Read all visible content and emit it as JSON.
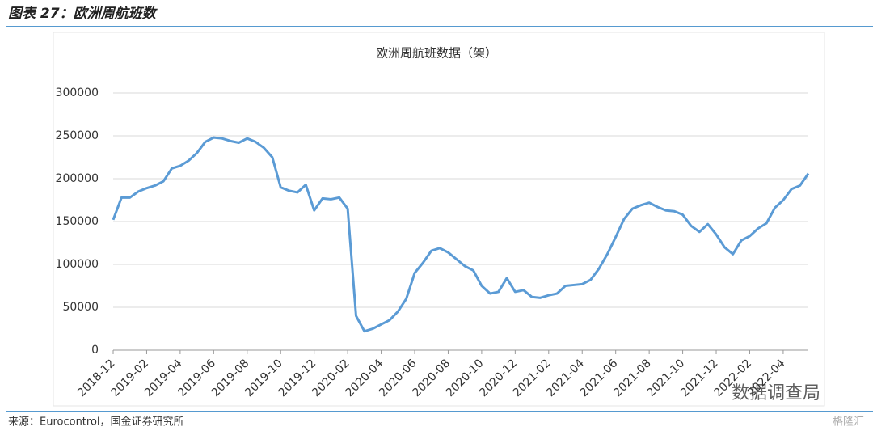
{
  "header": "图表 27：欧洲周航班数",
  "source": "来源：Eurocontrol，国金证券研究所",
  "watermark": "数据调查局",
  "watermark2": "格隆汇",
  "chart_data": {
    "type": "line",
    "title": "欧洲周航班数据（架）",
    "categories": [
      "2018-12",
      null,
      null,
      null,
      "2019-02",
      null,
      null,
      null,
      "2019-04",
      null,
      null,
      null,
      "2019-06",
      null,
      null,
      null,
      "2019-08",
      null,
      null,
      null,
      "2019-10",
      null,
      null,
      null,
      "2019-12",
      null,
      null,
      null,
      "2020-02",
      null,
      null,
      null,
      "2020-04",
      null,
      null,
      null,
      "2020-06",
      null,
      null,
      null,
      "2020-08",
      null,
      null,
      null,
      "2020-10",
      null,
      null,
      null,
      "2020-12",
      null,
      null,
      null,
      "2021-02",
      null,
      null,
      null,
      "2021-04",
      null,
      null,
      null,
      "2021-06",
      null,
      null,
      null,
      "2021-08",
      null,
      null,
      null,
      "2021-10",
      null,
      null,
      null,
      "2021-12",
      null,
      null,
      null,
      "2022-02",
      null,
      null,
      null,
      "2022-04",
      null,
      null,
      null
    ],
    "values": [
      152000,
      178000,
      178000,
      185000,
      189000,
      192000,
      197000,
      212000,
      215000,
      221000,
      230000,
      243000,
      248000,
      247000,
      244000,
      242000,
      247000,
      243000,
      236000,
      225000,
      190000,
      186000,
      184000,
      193000,
      163000,
      177000,
      176000,
      178000,
      165000,
      40000,
      22000,
      25000,
      30000,
      35000,
      45000,
      60000,
      90000,
      102000,
      116000,
      119000,
      114000,
      106000,
      98000,
      93000,
      75000,
      66000,
      68000,
      84000,
      68000,
      70000,
      62000,
      61000,
      64000,
      66000,
      75000,
      76000,
      77000,
      82000,
      95000,
      112000,
      132000,
      153000,
      165000,
      169000,
      172000,
      167000,
      163000,
      162000,
      158000,
      145000,
      138000,
      147000,
      135000,
      120000,
      112000,
      128000,
      133000,
      142000,
      148000,
      166000,
      175000,
      188000,
      192000,
      206000
    ],
    "color": "#5b9bd5",
    "ylim": [
      0,
      300000
    ],
    "yticks": [
      0,
      50000,
      100000,
      150000,
      200000,
      250000,
      300000
    ],
    "grid": true
  }
}
